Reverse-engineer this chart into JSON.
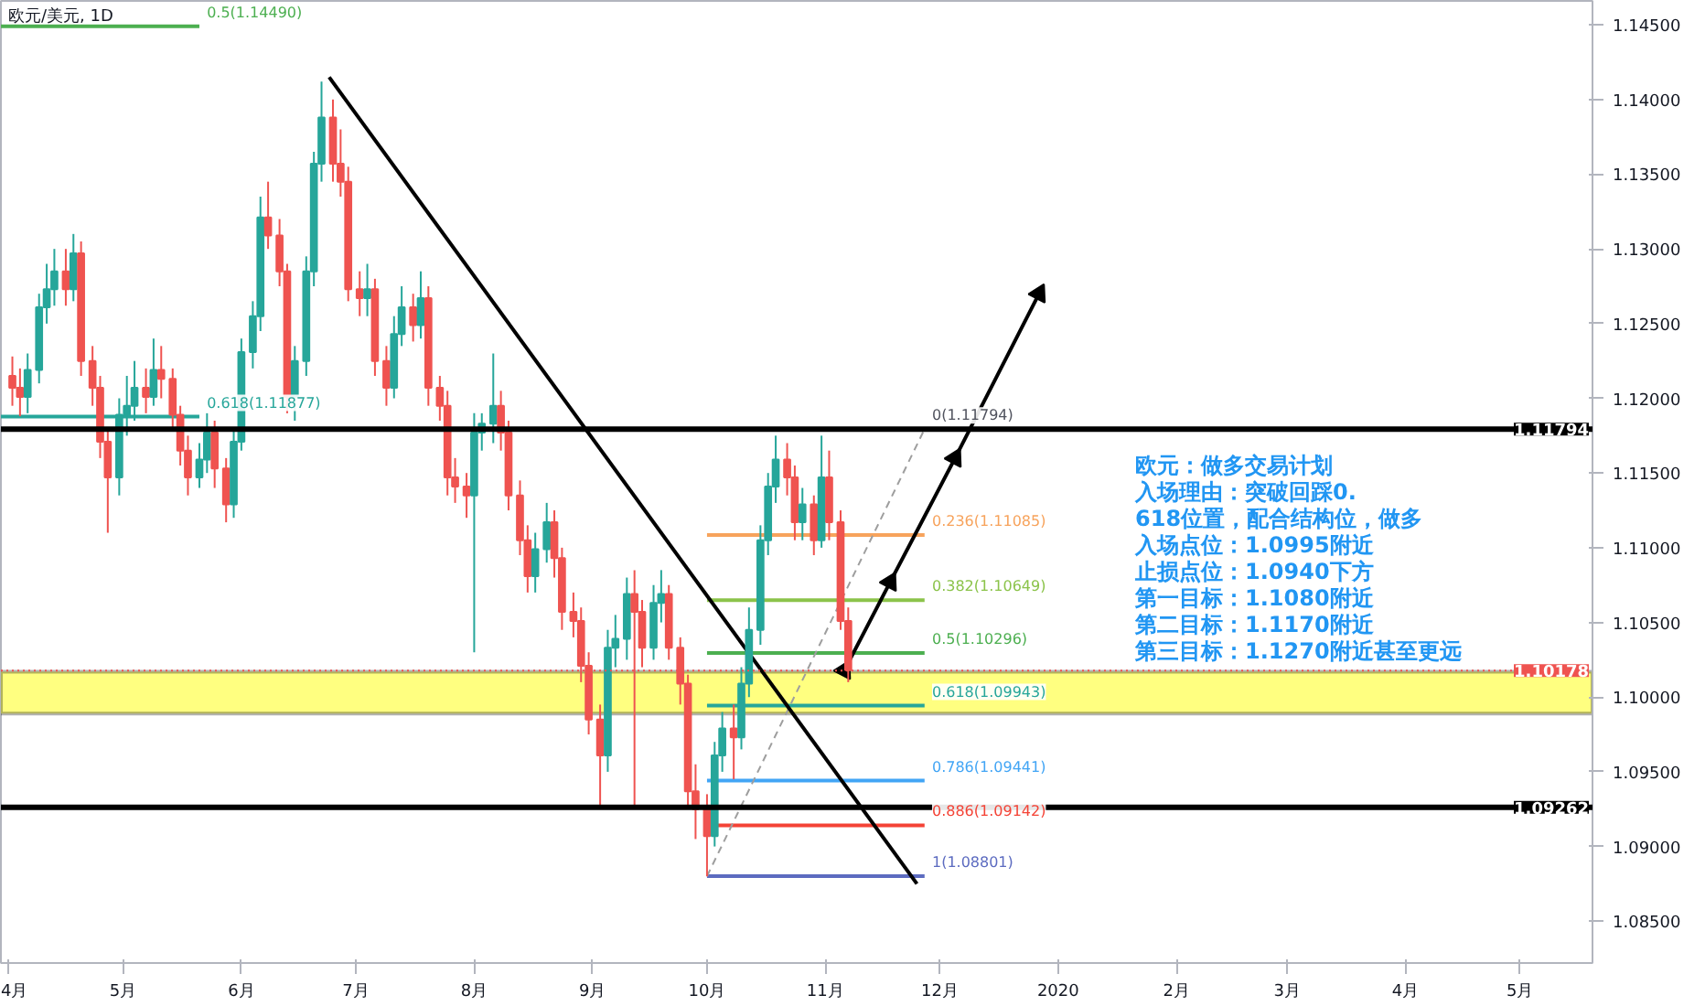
{
  "chart_data": {
    "type": "candlestick",
    "title": "欧元/美元, 1D",
    "x": [
      "2019-04-02",
      "2019-04-04",
      "2019-04-06",
      "2019-04-09",
      "2019-04-11",
      "2019-04-13",
      "2019-04-16",
      "2019-04-18",
      "2019-04-20",
      "2019-04-23",
      "2019-04-25",
      "2019-04-27",
      "2019-04-30",
      "2019-05-02",
      "2019-05-04",
      "2019-05-07",
      "2019-05-09",
      "2019-05-11",
      "2019-05-14",
      "2019-05-16",
      "2019-05-18",
      "2019-05-21",
      "2019-05-23",
      "2019-05-25",
      "2019-05-28",
      "2019-05-30",
      "2019-06-01",
      "2019-06-04",
      "2019-06-06",
      "2019-06-08",
      "2019-06-11",
      "2019-06-13",
      "2019-06-15",
      "2019-06-18",
      "2019-06-20",
      "2019-06-22",
      "2019-06-25",
      "2019-06-27",
      "2019-06-29",
      "2019-07-02",
      "2019-07-04",
      "2019-07-06",
      "2019-07-09",
      "2019-07-11",
      "2019-07-13",
      "2019-07-16",
      "2019-07-18",
      "2019-07-20",
      "2019-07-23",
      "2019-07-25",
      "2019-07-27",
      "2019-07-30",
      "2019-08-01",
      "2019-08-03",
      "2019-08-06",
      "2019-08-08",
      "2019-08-10",
      "2019-08-13",
      "2019-08-15",
      "2019-08-17",
      "2019-08-20",
      "2019-08-22",
      "2019-08-24",
      "2019-08-27",
      "2019-08-29",
      "2019-08-31",
      "2019-09-03",
      "2019-09-05",
      "2019-09-07",
      "2019-09-10",
      "2019-09-12",
      "2019-09-14",
      "2019-09-17",
      "2019-09-19",
      "2019-09-21",
      "2019-09-24",
      "2019-09-26",
      "2019-09-28",
      "2019-10-01",
      "2019-10-03",
      "2019-10-05",
      "2019-10-08",
      "2019-10-10",
      "2019-10-12",
      "2019-10-15",
      "2019-10-17",
      "2019-10-19",
      "2019-10-22",
      "2019-10-24",
      "2019-10-26",
      "2019-10-29",
      "2019-10-31",
      "2019-11-02",
      "2019-11-05",
      "2019-11-07"
    ],
    "ohlc": [
      [
        1.1215,
        1.1228,
        1.1195,
        1.1207
      ],
      [
        1.1207,
        1.122,
        1.1188,
        1.1201
      ],
      [
        1.1201,
        1.123,
        1.119,
        1.1219
      ],
      [
        1.1219,
        1.127,
        1.121,
        1.1261
      ],
      [
        1.1261,
        1.129,
        1.125,
        1.1273
      ],
      [
        1.1273,
        1.13,
        1.1262,
        1.1285
      ],
      [
        1.1285,
        1.13,
        1.1262,
        1.1273
      ],
      [
        1.1273,
        1.131,
        1.1265,
        1.1297
      ],
      [
        1.1297,
        1.1305,
        1.1215,
        1.1225
      ],
      [
        1.1225,
        1.1235,
        1.1195,
        1.1207
      ],
      [
        1.1207,
        1.1215,
        1.116,
        1.1171
      ],
      [
        1.1171,
        1.118,
        1.111,
        1.1147
      ],
      [
        1.1147,
        1.12,
        1.1135,
        1.1189
      ],
      [
        1.1189,
        1.1215,
        1.1175,
        1.1195
      ],
      [
        1.1195,
        1.1225,
        1.1185,
        1.1207
      ],
      [
        1.1207,
        1.122,
        1.119,
        1.1201
      ],
      [
        1.1201,
        1.124,
        1.1195,
        1.1219
      ],
      [
        1.1219,
        1.1235,
        1.12,
        1.1213
      ],
      [
        1.1213,
        1.122,
        1.118,
        1.1189
      ],
      [
        1.1189,
        1.1195,
        1.1155,
        1.1165
      ],
      [
        1.1165,
        1.1175,
        1.1135,
        1.1147
      ],
      [
        1.1147,
        1.117,
        1.114,
        1.1159
      ],
      [
        1.1159,
        1.119,
        1.115,
        1.1177
      ],
      [
        1.1177,
        1.1185,
        1.114,
        1.1153
      ],
      [
        1.1153,
        1.116,
        1.1117,
        1.1129
      ],
      [
        1.1129,
        1.118,
        1.112,
        1.1171
      ],
      [
        1.1171,
        1.124,
        1.1165,
        1.1231
      ],
      [
        1.1231,
        1.1265,
        1.122,
        1.1255
      ],
      [
        1.1255,
        1.1335,
        1.1245,
        1.1321
      ],
      [
        1.1321,
        1.1345,
        1.13,
        1.1309
      ],
      [
        1.1309,
        1.132,
        1.1275,
        1.1285
      ],
      [
        1.1285,
        1.129,
        1.119,
        1.1201
      ],
      [
        1.1201,
        1.1235,
        1.1185,
        1.1225
      ],
      [
        1.1225,
        1.1295,
        1.1215,
        1.1285
      ],
      [
        1.1285,
        1.1365,
        1.1275,
        1.1357
      ],
      [
        1.1357,
        1.1412,
        1.1345,
        1.1388
      ],
      [
        1.1388,
        1.14,
        1.1345,
        1.1357
      ],
      [
        1.1357,
        1.138,
        1.1335,
        1.1345
      ],
      [
        1.1345,
        1.1355,
        1.1265,
        1.1273
      ],
      [
        1.1273,
        1.1285,
        1.1255,
        1.1267
      ],
      [
        1.1267,
        1.129,
        1.1255,
        1.1273
      ],
      [
        1.1273,
        1.128,
        1.1215,
        1.1225
      ],
      [
        1.1225,
        1.1235,
        1.1195,
        1.1207
      ],
      [
        1.1207,
        1.1255,
        1.12,
        1.1243
      ],
      [
        1.1243,
        1.1275,
        1.1235,
        1.1261
      ],
      [
        1.1261,
        1.127,
        1.1238,
        1.1249
      ],
      [
        1.1249,
        1.1285,
        1.124,
        1.1267
      ],
      [
        1.1267,
        1.1275,
        1.1195,
        1.1207
      ],
      [
        1.1207,
        1.1215,
        1.1185,
        1.1195
      ],
      [
        1.1195,
        1.1205,
        1.1135,
        1.1147
      ],
      [
        1.1147,
        1.116,
        1.113,
        1.1141
      ],
      [
        1.1141,
        1.115,
        1.112,
        1.1135
      ],
      [
        1.1135,
        1.119,
        1.103,
        1.1177
      ],
      [
        1.1177,
        1.119,
        1.1165,
        1.1183
      ],
      [
        1.1183,
        1.123,
        1.117,
        1.1195
      ],
      [
        1.1195,
        1.1205,
        1.1165,
        1.1177
      ],
      [
        1.1177,
        1.1185,
        1.1125,
        1.1135
      ],
      [
        1.1135,
        1.1145,
        1.1095,
        1.1105
      ],
      [
        1.1105,
        1.1115,
        1.107,
        1.1081
      ],
      [
        1.1081,
        1.111,
        1.107,
        1.1099
      ],
      [
        1.1099,
        1.113,
        1.109,
        1.1117
      ],
      [
        1.1117,
        1.1125,
        1.108,
        1.1093
      ],
      [
        1.1093,
        1.11,
        1.1045,
        1.1057
      ],
      [
        1.1057,
        1.107,
        1.104,
        1.1051
      ],
      [
        1.1051,
        1.106,
        1.101,
        1.1021
      ],
      [
        1.1021,
        1.103,
        1.0975,
        1.0985
      ],
      [
        1.0985,
        1.0995,
        1.0925,
        1.0961
      ],
      [
        1.0961,
        1.1045,
        1.095,
        1.1033
      ],
      [
        1.1033,
        1.1055,
        1.102,
        1.1039
      ],
      [
        1.1039,
        1.108,
        1.1025,
        1.1069
      ],
      [
        1.1069,
        1.1085,
        1.0925,
        1.1057
      ],
      [
        1.1057,
        1.1065,
        1.102,
        1.1033
      ],
      [
        1.1033,
        1.1075,
        1.1025,
        1.1063
      ],
      [
        1.1063,
        1.1085,
        1.105,
        1.1069
      ],
      [
        1.1069,
        1.1075,
        1.1025,
        1.1033
      ],
      [
        1.1033,
        1.104,
        1.0995,
        1.1009
      ],
      [
        1.1009,
        1.1015,
        1.0925,
        1.0937
      ],
      [
        1.0937,
        1.0955,
        1.0905,
        1.0925
      ],
      [
        1.0925,
        1.0935,
        1.088,
        1.0907
      ],
      [
        1.0907,
        1.097,
        1.09,
        1.0961
      ],
      [
        1.0961,
        1.099,
        1.095,
        1.0979
      ],
      [
        1.0979,
        1.0995,
        1.0945,
        1.0973
      ],
      [
        1.0973,
        1.102,
        1.0965,
        1.1009
      ],
      [
        1.1009,
        1.106,
        1.1,
        1.1045
      ],
      [
        1.1045,
        1.1115,
        1.1035,
        1.1105
      ],
      [
        1.1105,
        1.115,
        1.1095,
        1.1141
      ],
      [
        1.1141,
        1.1175,
        1.113,
        1.1159
      ],
      [
        1.1159,
        1.117,
        1.1135,
        1.1147
      ],
      [
        1.1147,
        1.1155,
        1.1105,
        1.1117
      ],
      [
        1.1117,
        1.114,
        1.1105,
        1.1129
      ],
      [
        1.1129,
        1.1135,
        1.1095,
        1.1105
      ],
      [
        1.1105,
        1.1175,
        1.11,
        1.1147
      ],
      [
        1.1147,
        1.1165,
        1.1105,
        1.1117
      ],
      [
        1.1117,
        1.1125,
        1.1045,
        1.1051
      ],
      [
        1.1051,
        1.106,
        1.101,
        1.1018
      ]
    ],
    "series": [
      {
        "type": "line",
        "x": [
          "2019-03-30",
          "2019-05-21"
        ],
        "values": [
          1.1449,
          1.1449
        ],
        "color": "#4caf50"
      },
      {
        "type": "line",
        "x": [
          "2019-03-30",
          "2019-05-21"
        ],
        "values": [
          1.11877,
          1.11877
        ],
        "color": "#26a69a"
      },
      {
        "type": "line",
        "x": [
          "2019-10-01",
          "2019-11-27"
        ],
        "values": [
          1.11085,
          1.11085
        ],
        "color": "#f7a35c"
      },
      {
        "type": "line",
        "x": [
          "2019-10-01",
          "2019-11-27"
        ],
        "values": [
          1.10649,
          1.10649
        ],
        "color": "#8bc34a"
      },
      {
        "type": "line",
        "x": [
          "2019-10-01",
          "2019-11-27"
        ],
        "values": [
          1.10296,
          1.10296
        ],
        "color": "#4caf50"
      },
      {
        "type": "line",
        "x": [
          "2019-10-01",
          "2019-11-27"
        ],
        "values": [
          1.09943,
          1.09943
        ],
        "color": "#26a69a"
      },
      {
        "type": "line",
        "x": [
          "2019-10-01",
          "2019-11-27"
        ],
        "values": [
          1.09441,
          1.09441
        ],
        "color": "#42a5f5"
      },
      {
        "type": "line",
        "x": [
          "2019-10-01",
          "2019-11-27"
        ],
        "values": [
          1.09142,
          1.09142
        ],
        "color": "#f44336"
      },
      {
        "type": "line",
        "x": [
          "2019-10-01",
          "2019-11-27"
        ],
        "values": [
          1.08801,
          1.08801
        ],
        "color": "#5c6bc0"
      },
      {
        "type": "line",
        "x": [
          "2019-10-01",
          "2019-11-27"
        ],
        "values": [
          1.08801,
          1.11794
        ],
        "color": "#9e9e9e",
        "line_style": "dashed"
      },
      {
        "type": "line",
        "x": [
          "2019-06-24",
          "2019-11-25"
        ],
        "values": [
          1.1415,
          1.0875
        ],
        "color": "#000000"
      },
      {
        "type": "line",
        "x": [
          "2019-11-06",
          "2019-11-18",
          "2019-12-05",
          "2019-12-27"
        ],
        "values": [
          1.1018,
          1.1077,
          1.116,
          1.127
        ],
        "color": "#000000",
        "marker": "triangle"
      }
    ],
    "bands": [
      {
        "axis": "y",
        "from": 1.0989,
        "to": 1.1017,
        "color": "#ffff80"
      }
    ],
    "ref_lines": [
      {
        "axis": "y",
        "value": 1.11794,
        "label": "1.11794",
        "color": "#000000"
      },
      {
        "axis": "y",
        "value": 1.09262,
        "label": "1.09262",
        "color": "#000000"
      },
      {
        "axis": "y",
        "value": 1.10178,
        "label": "1.10178",
        "color": "#ef5350",
        "line_style": "dotted"
      }
    ],
    "annotations": [
      {
        "text": "0.5(1.14490)",
        "x": "2019-05-22",
        "y": 1.1449
      },
      {
        "text": "0.618(1.11877)",
        "x": "2019-05-22",
        "y": 1.11877
      },
      {
        "text": "0(1.11794)",
        "x": "2019-11-28",
        "y": 1.11794
      },
      {
        "text": "0.236(1.11085)",
        "x": "2019-11-28",
        "y": 1.11085
      },
      {
        "text": "0.382(1.10649)",
        "x": "2019-11-28",
        "y": 1.10649
      },
      {
        "text": "0.5(1.10296)",
        "x": "2019-11-28",
        "y": 1.10296
      },
      {
        "text": "0.618(1.09943)",
        "x": "2019-11-28",
        "y": 1.09943
      },
      {
        "text": "0.786(1.09441)",
        "x": "2019-11-28",
        "y": 1.09441
      },
      {
        "text": "0.886(1.09142)",
        "x": "2019-11-28",
        "y": 1.09142
      },
      {
        "text": "1(1.08801)",
        "x": "2019-11-28",
        "y": 1.08801
      },
      "欧元：做多交易计划",
      "入场理由：突破回踩0.",
      "618位置，配合结构位，做多",
      "入场点位：1.0995附近",
      "止损点位：1.0940下方",
      "第一目标：1.1080附近",
      "第二目标：1.1170附近",
      "第三目标：1.1270附近甚至更远"
    ],
    "xlim": [
      "2019-03-30",
      "2020-05-20"
    ],
    "xticks": [
      {
        "value": "2019-04-01",
        "label": "4月"
      },
      {
        "value": "2019-05-01",
        "label": "5月"
      },
      {
        "value": "2019-06-01",
        "label": "6月"
      },
      {
        "value": "2019-07-01",
        "label": "7月"
      },
      {
        "value": "2019-08-01",
        "label": "8月"
      },
      {
        "value": "2019-09-01",
        "label": "9月"
      },
      {
        "value": "2019-10-01",
        "label": "10月"
      },
      {
        "value": "2019-11-01",
        "label": "11月"
      },
      {
        "value": "2019-12-01",
        "label": "12月"
      },
      {
        "value": "2020-01-01",
        "label": "2020"
      },
      {
        "value": "2020-02-01",
        "label": "2月"
      },
      {
        "value": "2020-03-01",
        "label": "3月"
      },
      {
        "value": "2020-04-01",
        "label": "4月"
      },
      {
        "value": "2020-05-01",
        "label": "5月"
      }
    ],
    "ylim": [
      1.0822,
      1.1466
    ],
    "yticks": [
      {
        "value": 1.085,
        "label": "1.08500"
      },
      {
        "value": 1.09,
        "label": "1.09000"
      },
      {
        "value": 1.095,
        "label": "1.09500"
      },
      {
        "value": 1.1,
        "label": "1.10000"
      },
      {
        "value": 1.105,
        "label": "1.10500"
      },
      {
        "value": 1.11,
        "label": "1.11000"
      },
      {
        "value": 1.115,
        "label": "1.11500"
      },
      {
        "value": 1.12,
        "label": "1.12000"
      },
      {
        "value": 1.125,
        "label": "1.12500"
      },
      {
        "value": 1.13,
        "label": "1.13000"
      },
      {
        "value": 1.135,
        "label": "1.13500"
      },
      {
        "value": 1.14,
        "label": "1.14000"
      },
      {
        "value": 1.145,
        "label": "1.14500"
      }
    ]
  }
}
